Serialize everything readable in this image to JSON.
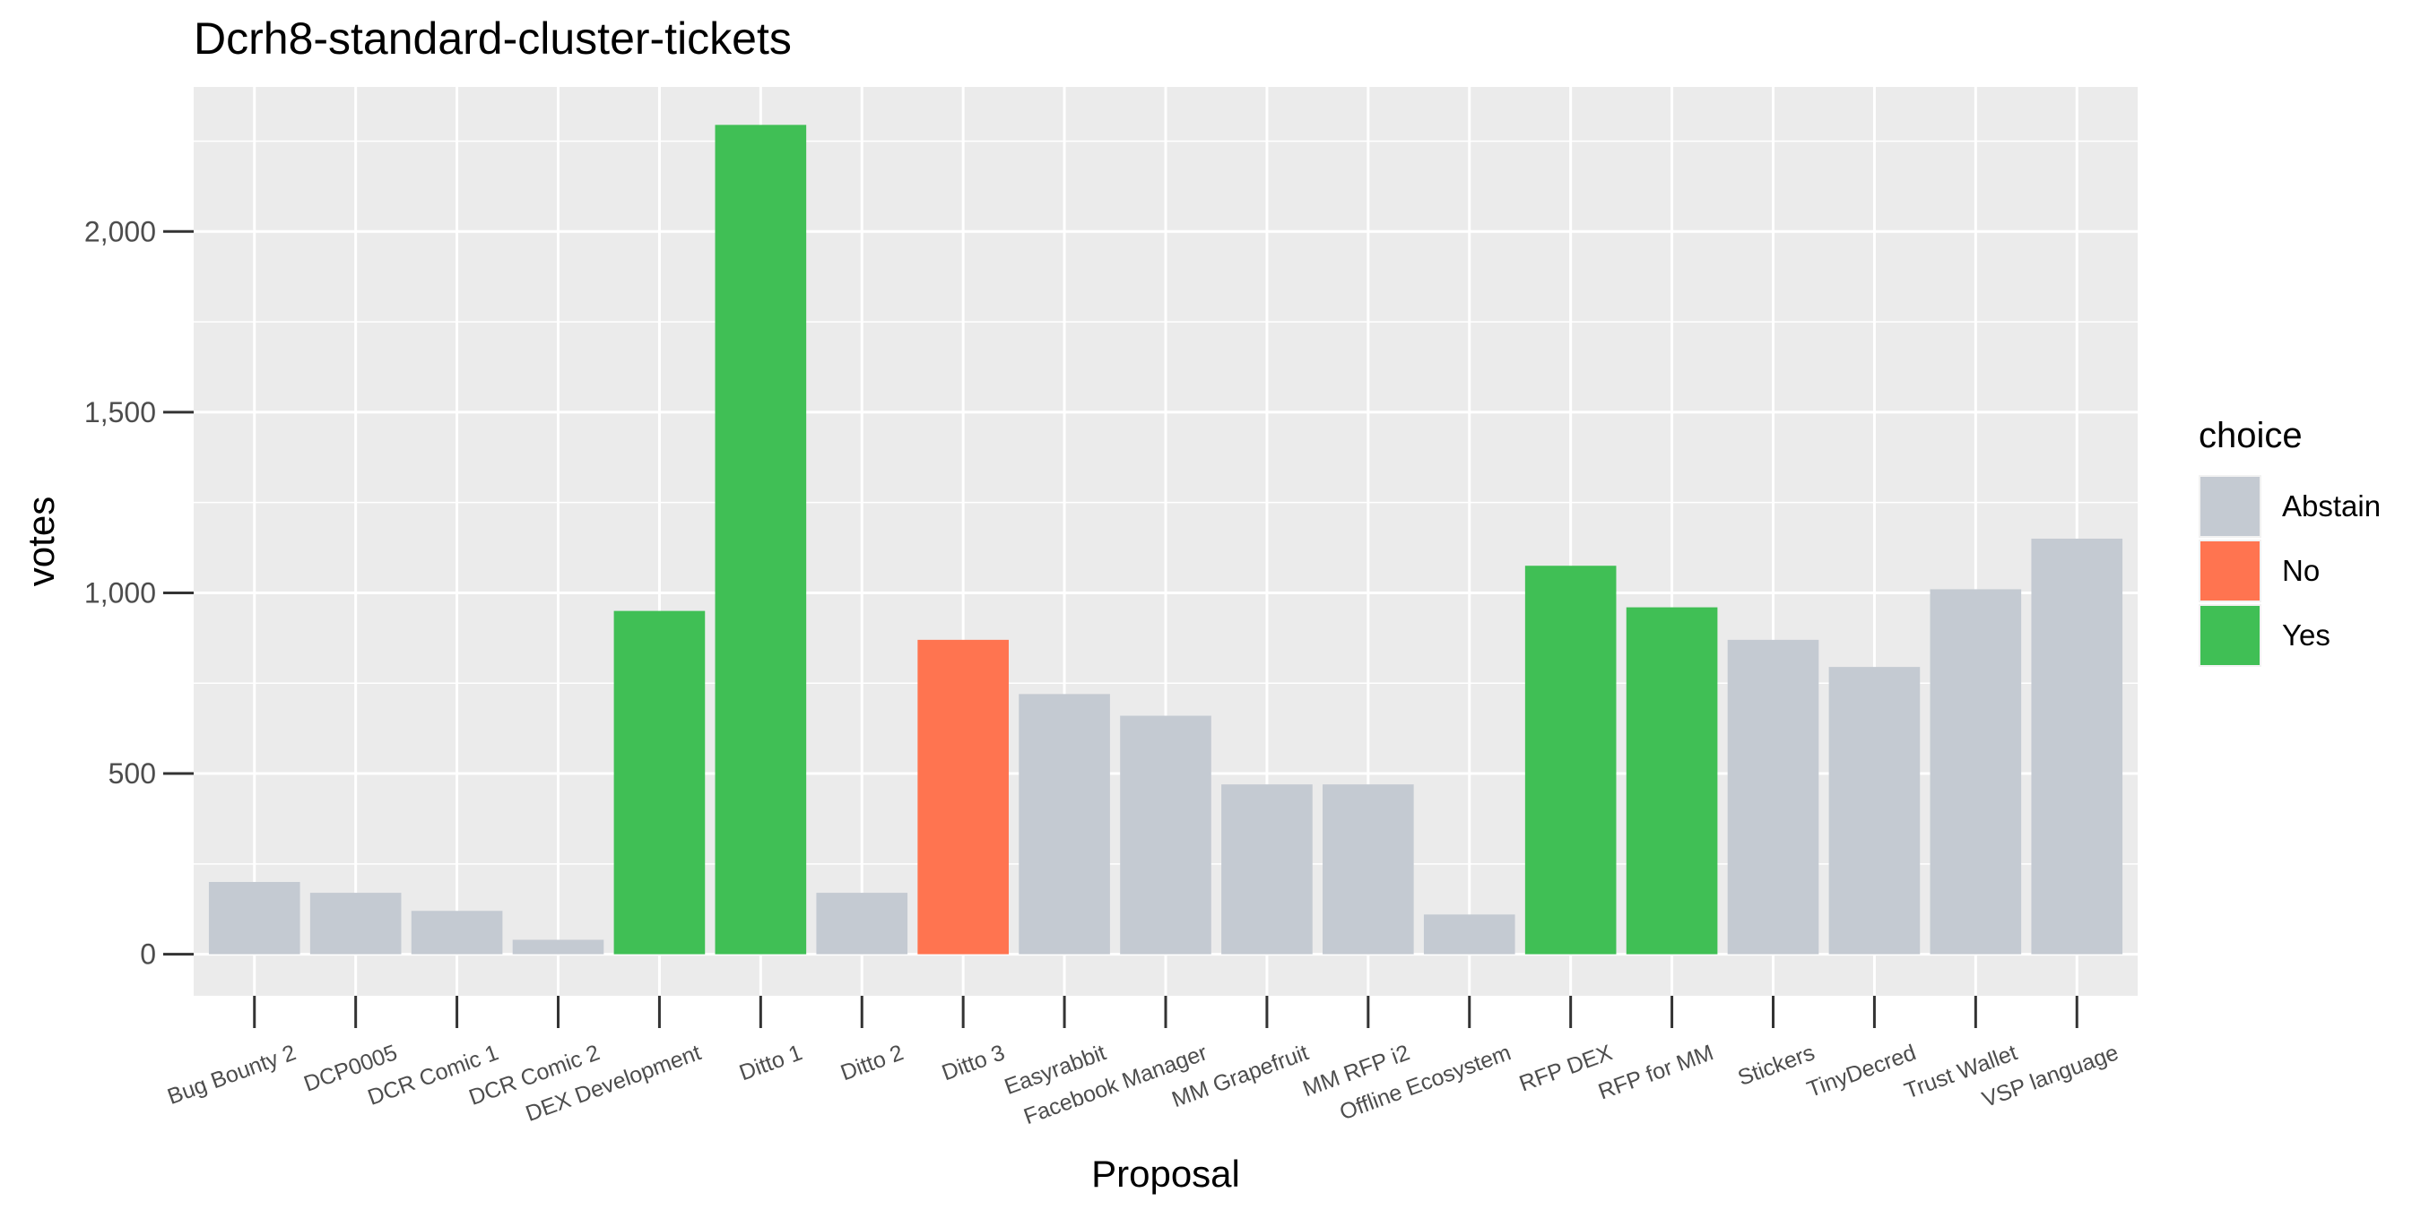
{
  "chart_data": {
    "type": "bar",
    "title": "Dcrh8-standard-cluster-tickets",
    "xlabel": "Proposal",
    "ylabel": "votes",
    "ylim": [
      -115,
      2400
    ],
    "yticks": [
      0,
      500,
      1000,
      1500,
      2000
    ],
    "ytick_labels": [
      "0",
      "500",
      "1,000",
      "1,500",
      "2,000"
    ],
    "grid": true,
    "legend": {
      "title": "choice",
      "position": "right",
      "entries": [
        {
          "label": "Abstain",
          "color": "#c4cad2"
        },
        {
          "label": "No",
          "color": "#ff7450"
        },
        {
          "label": "Yes",
          "color": "#40bf55"
        }
      ]
    },
    "categories": [
      "Bug Bounty 2",
      "DCP0005",
      "DCR Comic 1",
      "DCR Comic 2",
      "DEX Development",
      "Ditto 1",
      "Ditto 2",
      "Ditto 3",
      "Easyrabbit",
      "Facebook Manager",
      "MM Grapefruit",
      "MM RFP i2",
      "Offline Ecosystem",
      "RFP DEX",
      "RFP for MM",
      "Stickers",
      "TinyDecred",
      "Trust Wallet",
      "VSP language"
    ],
    "values": [
      200,
      170,
      120,
      40,
      950,
      2295,
      170,
      870,
      720,
      660,
      470,
      470,
      110,
      1075,
      960,
      870,
      795,
      1010,
      1150
    ],
    "choices": [
      "Abstain",
      "Abstain",
      "Abstain",
      "Abstain",
      "Yes",
      "Yes",
      "Abstain",
      "No",
      "Abstain",
      "Abstain",
      "Abstain",
      "Abstain",
      "Abstain",
      "Yes",
      "Yes",
      "Abstain",
      "Abstain",
      "Abstain",
      "Abstain"
    ]
  }
}
